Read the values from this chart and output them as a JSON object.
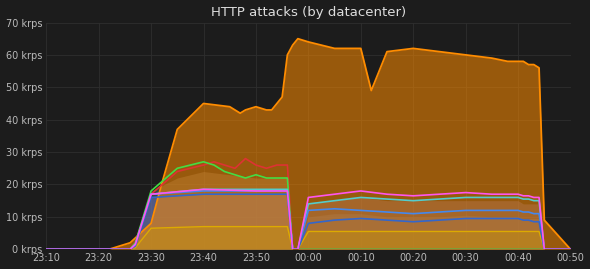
{
  "title": "HTTP attacks (by datacenter)",
  "background_color": "#1c1c1c",
  "plot_bg_color": "#1c1c1c",
  "grid_color": "#2e2e2e",
  "text_color": "#bbbbbb",
  "title_color": "#dddddd",
  "ylim": [
    0,
    70000
  ],
  "yticks": [
    0,
    10000,
    20000,
    30000,
    40000,
    50000,
    60000,
    70000
  ],
  "ytick_labels": [
    "0 krps",
    "10 krps",
    "20 krps",
    "30 krps",
    "40 krps",
    "50 krps",
    "60 krps",
    "70 krps"
  ],
  "xtick_labels": [
    "23:10",
    "23:20",
    "23:30",
    "23:40",
    "23:50",
    "00:00",
    "00:10",
    "00:20",
    "00:30",
    "00:40",
    "00:50"
  ],
  "xlim": [
    0,
    100
  ],
  "series": [
    {
      "color": "#ff8c00",
      "label": "orange",
      "linewidth": 1.3,
      "fill": true,
      "fill_alpha": 0.55,
      "line_alpha": 1.0,
      "zorder": 5,
      "x": [
        0,
        10,
        12,
        16,
        20,
        22,
        25,
        30,
        35,
        36,
        37,
        38,
        40,
        42,
        43,
        44,
        45,
        46,
        47,
        48,
        50,
        55,
        60,
        62,
        65,
        70,
        75,
        80,
        85,
        88,
        90,
        91,
        92,
        93,
        94,
        95,
        100
      ],
      "y": [
        0,
        0,
        0,
        2000,
        8000,
        20000,
        37000,
        45000,
        44000,
        43000,
        42000,
        43000,
        44000,
        43000,
        43000,
        45000,
        47000,
        60000,
        63000,
        65000,
        64000,
        62000,
        62000,
        49000,
        61000,
        62000,
        61000,
        60000,
        59000,
        58000,
        58000,
        58000,
        57000,
        57000,
        56000,
        9000,
        0
      ]
    },
    {
      "color": "#dd3333",
      "label": "red",
      "linewidth": 1.2,
      "fill": false,
      "fill_alpha": 0.0,
      "line_alpha": 1.0,
      "zorder": 7,
      "x": [
        0,
        16,
        17,
        20,
        25,
        30,
        32,
        34,
        36,
        38,
        40,
        42,
        44,
        46,
        47,
        48,
        100
      ],
      "y": [
        0,
        0,
        2000,
        17000,
        24000,
        26000,
        27000,
        26000,
        25000,
        28000,
        26000,
        25000,
        26000,
        26000,
        0,
        0,
        0
      ]
    },
    {
      "color": "#44dd44",
      "label": "green",
      "linewidth": 1.2,
      "fill": false,
      "fill_alpha": 0.0,
      "line_alpha": 1.0,
      "zorder": 7,
      "x": [
        0,
        16,
        17,
        20,
        25,
        30,
        32,
        34,
        36,
        38,
        40,
        42,
        44,
        46,
        47,
        48,
        100
      ],
      "y": [
        0,
        0,
        2000,
        18000,
        25000,
        27000,
        26000,
        24000,
        23000,
        22000,
        23000,
        22000,
        22000,
        22000,
        0,
        0,
        0
      ]
    },
    {
      "color": "#888888",
      "label": "gray_fill",
      "linewidth": 0,
      "fill": true,
      "fill_alpha": 0.35,
      "fill_color": "#888888",
      "line_alpha": 0.0,
      "zorder": 3,
      "x": [
        0,
        16,
        17,
        20,
        25,
        30,
        35,
        40,
        44,
        46,
        47,
        48,
        100
      ],
      "y": [
        0,
        0,
        2000,
        18000,
        22000,
        24000,
        23000,
        22000,
        22000,
        22000,
        0,
        0,
        0
      ]
    },
    {
      "color": "#8888cc",
      "label": "purple_fill",
      "linewidth": 0,
      "fill": true,
      "fill_alpha": 0.45,
      "fill_color": "#6060aa",
      "line_alpha": 0.0,
      "zorder": 3,
      "x": [
        0,
        16,
        17,
        20,
        30,
        40,
        46,
        47,
        48,
        50,
        55,
        60,
        65,
        70,
        75,
        80,
        85,
        90,
        91,
        92,
        93,
        94,
        95,
        100
      ],
      "y": [
        0,
        0,
        1500,
        16000,
        17000,
        17000,
        17000,
        0,
        0,
        14000,
        15000,
        16000,
        15000,
        15000,
        15000,
        15000,
        15000,
        15000,
        14000,
        14000,
        14000,
        14000,
        0,
        0
      ]
    },
    {
      "color": "#aaaadd",
      "label": "blue_light_fill",
      "linewidth": 0,
      "fill": true,
      "fill_alpha": 0.3,
      "fill_color": "#4488cc",
      "line_alpha": 0.0,
      "zorder": 2,
      "x": [
        0,
        16,
        17,
        20,
        30,
        40,
        46,
        47,
        48,
        50,
        55,
        60,
        65,
        70,
        75,
        80,
        85,
        90,
        91,
        92,
        93,
        94,
        95,
        100
      ],
      "y": [
        0,
        0,
        1500,
        16000,
        17000,
        17000,
        17000,
        0,
        0,
        10000,
        11000,
        11000,
        10000,
        10000,
        10000,
        10500,
        10000,
        10000,
        9500,
        9500,
        9500,
        9500,
        0,
        0
      ]
    },
    {
      "color": "#ddaa00",
      "label": "yellow",
      "linewidth": 1.0,
      "fill": true,
      "fill_alpha": 0.4,
      "fill_color": "#cc9900",
      "line_alpha": 1.0,
      "zorder": 6,
      "x": [
        0,
        16,
        17,
        20,
        30,
        40,
        46,
        47,
        48,
        50,
        55,
        60,
        65,
        70,
        75,
        80,
        85,
        90,
        94,
        95,
        100
      ],
      "y": [
        0,
        0,
        500,
        6500,
        7000,
        7000,
        7000,
        0,
        0,
        5500,
        5500,
        5500,
        5500,
        5500,
        5500,
        5500,
        5500,
        5500,
        5500,
        0,
        0
      ]
    },
    {
      "color": "#55cccc",
      "label": "cyan",
      "linewidth": 1.2,
      "fill": false,
      "fill_alpha": 0.0,
      "line_alpha": 1.0,
      "zorder": 8,
      "x": [
        0,
        16,
        17,
        20,
        30,
        40,
        46,
        47,
        48,
        50,
        55,
        60,
        65,
        70,
        75,
        80,
        85,
        90,
        91,
        92,
        93,
        94,
        95,
        100
      ],
      "y": [
        0,
        0,
        1500,
        17000,
        18500,
        18500,
        18500,
        0,
        0,
        14000,
        15000,
        16000,
        15500,
        15000,
        15500,
        16000,
        16000,
        16000,
        15500,
        15500,
        15000,
        15000,
        0,
        0
      ]
    },
    {
      "color": "#4488ee",
      "label": "blue_mid",
      "linewidth": 1.2,
      "fill": false,
      "fill_alpha": 0.0,
      "line_alpha": 1.0,
      "zorder": 8,
      "x": [
        0,
        16,
        17,
        20,
        30,
        40,
        46,
        47,
        48,
        50,
        55,
        60,
        65,
        70,
        75,
        80,
        85,
        90,
        91,
        92,
        93,
        94,
        95,
        100
      ],
      "y": [
        0,
        0,
        1500,
        17000,
        18000,
        18000,
        18000,
        0,
        0,
        12000,
        12500,
        12000,
        11500,
        11000,
        11500,
        12000,
        12000,
        12000,
        11500,
        11500,
        11000,
        11000,
        0,
        0
      ]
    },
    {
      "color": "#ff55ee",
      "label": "magenta",
      "linewidth": 1.2,
      "fill": false,
      "fill_alpha": 0.0,
      "line_alpha": 1.0,
      "zorder": 9,
      "x": [
        0,
        16,
        17,
        20,
        30,
        40,
        46,
        47,
        48,
        50,
        55,
        60,
        65,
        70,
        75,
        80,
        85,
        90,
        91,
        92,
        93,
        94,
        95,
        100
      ],
      "y": [
        0,
        0,
        1500,
        17000,
        18500,
        18000,
        18000,
        0,
        0,
        16000,
        17000,
        18000,
        17000,
        16500,
        17000,
        17500,
        17000,
        17000,
        16500,
        16500,
        16000,
        16000,
        0,
        0
      ]
    },
    {
      "color": "#3366cc",
      "label": "blue_low",
      "linewidth": 1.2,
      "fill": false,
      "fill_alpha": 0.0,
      "line_alpha": 1.0,
      "zorder": 8,
      "x": [
        0,
        16,
        17,
        20,
        30,
        40,
        46,
        47,
        48,
        50,
        55,
        60,
        65,
        70,
        75,
        80,
        85,
        90,
        91,
        92,
        93,
        94,
        95,
        100
      ],
      "y": [
        0,
        0,
        1000,
        16000,
        17000,
        17000,
        17000,
        0,
        0,
        8000,
        9000,
        9500,
        9000,
        8500,
        9000,
        9500,
        9500,
        9500,
        9000,
        9000,
        8500,
        8500,
        0,
        0
      ]
    }
  ]
}
